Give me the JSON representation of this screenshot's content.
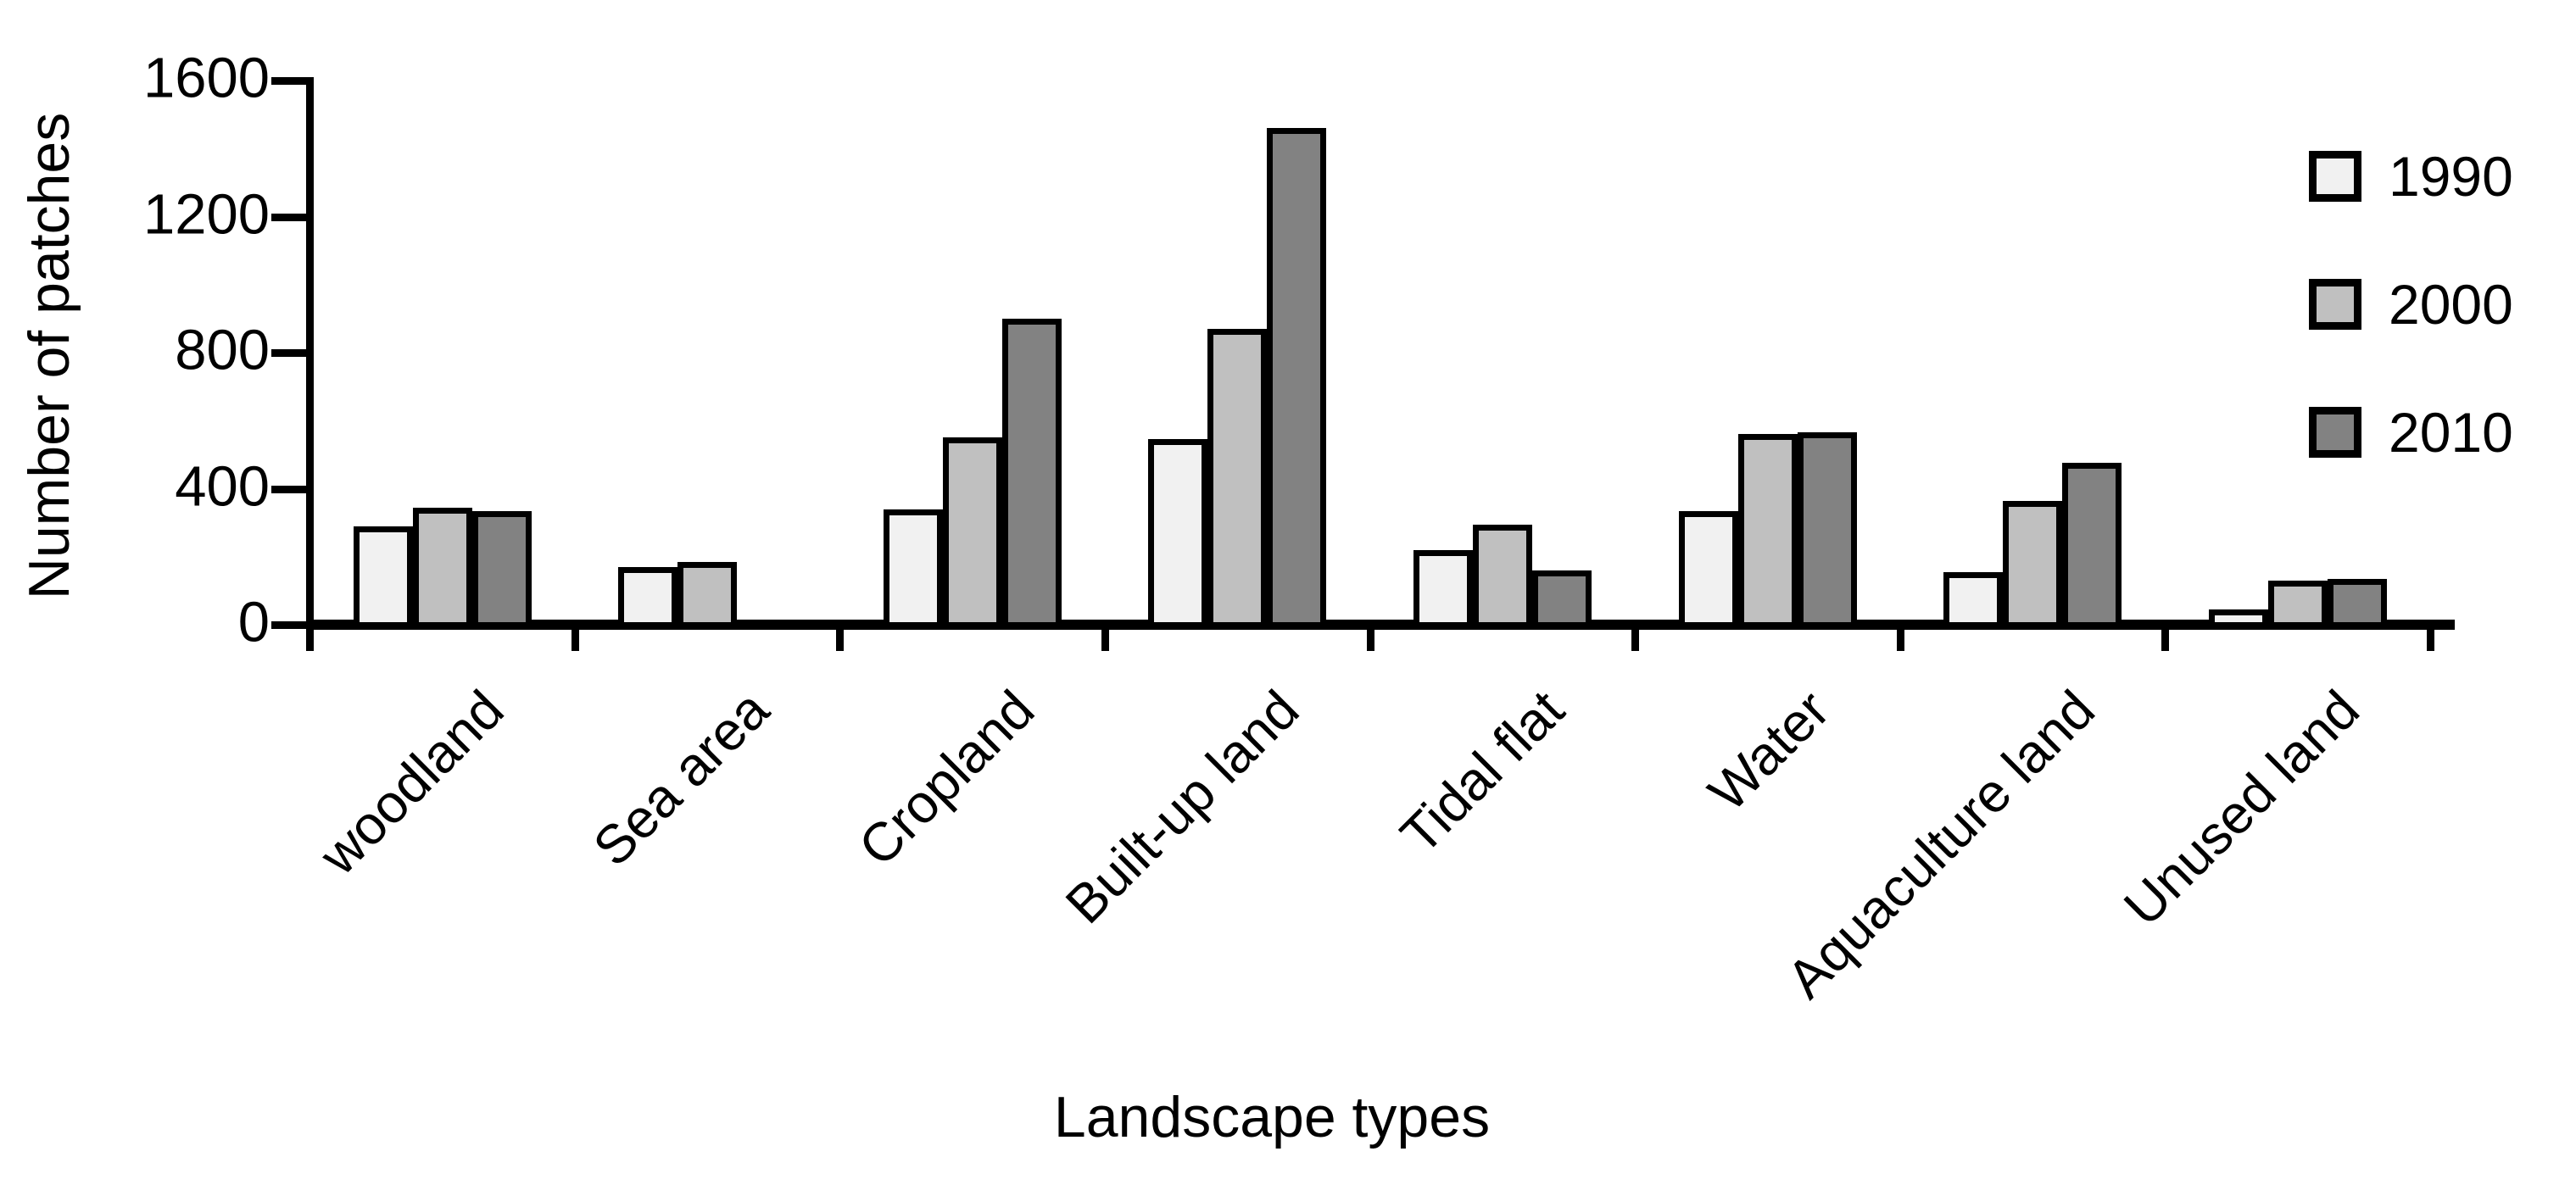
{
  "figure": {
    "background": "#ffffff",
    "axis_color": "#000000"
  },
  "chart_data": {
    "type": "bar",
    "title": "",
    "xlabel": "Landscape types",
    "ylabel": "Number of patches",
    "categories": [
      "woodland",
      "Sea area",
      "Cropland",
      "Built-up land",
      "Tidal flat",
      "Water",
      "Aquaculture land",
      "Unused land"
    ],
    "series": [
      {
        "name": "1990",
        "color": "#f1f1f1",
        "values": [
          290,
          170,
          340,
          545,
          220,
          335,
          155,
          45
        ]
      },
      {
        "name": "2000",
        "color": "#c0c0c0",
        "values": [
          345,
          185,
          550,
          870,
          295,
          560,
          365,
          130
        ]
      },
      {
        "name": "2010",
        "color": "#828282",
        "values": [
          335,
          0,
          900,
          1460,
          160,
          565,
          475,
          135
        ]
      }
    ],
    "ylim": [
      0,
      1600
    ],
    "yticks": [
      0,
      400,
      800,
      1200,
      1600
    ],
    "grid": false,
    "legend_position": "upper right",
    "bar_border_color": "#000000",
    "note_zero_bars": "Sea area has no 2010 bar (value 0)"
  }
}
